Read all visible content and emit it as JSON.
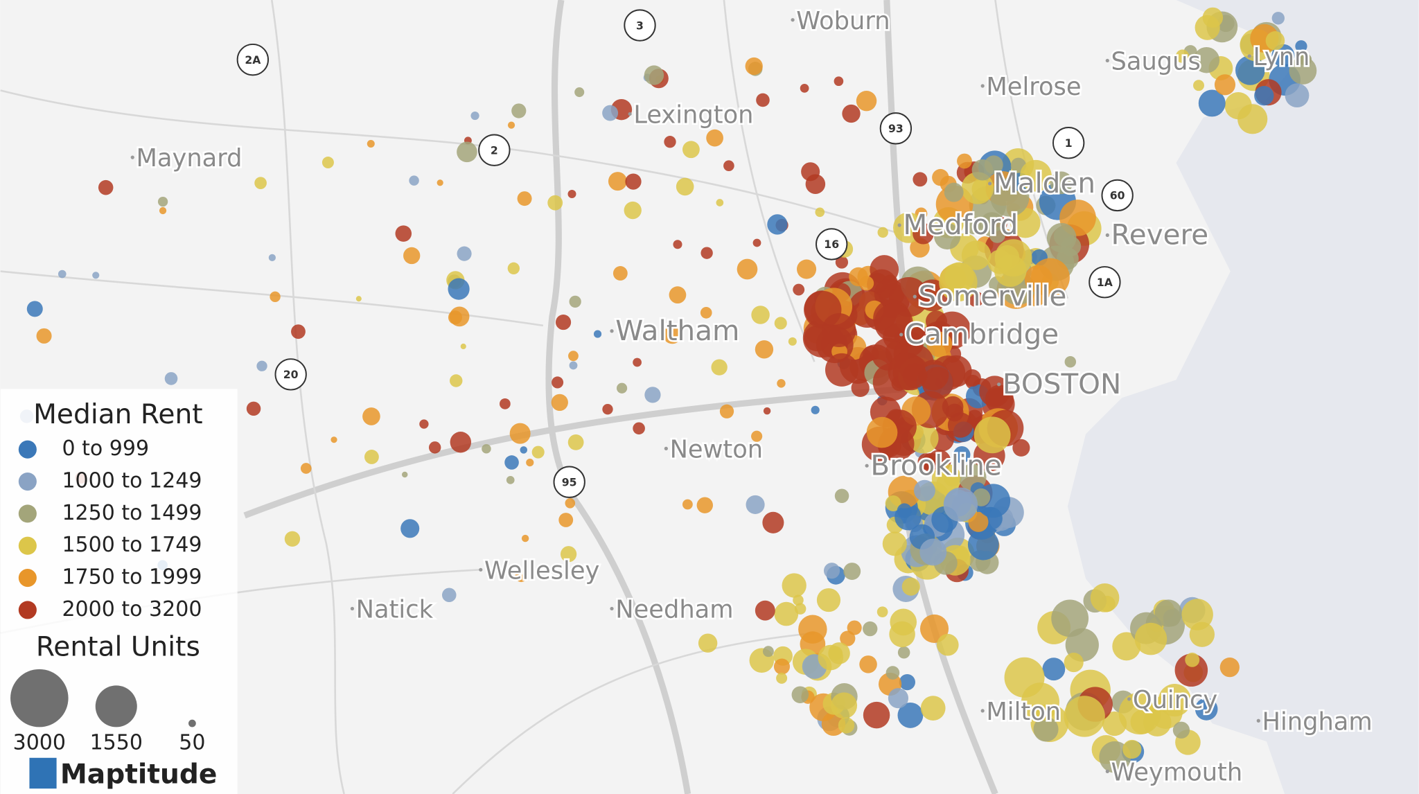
{
  "map": {
    "places": [
      "Woburn",
      "Saugus",
      "Lynn",
      "Melrose",
      "Lexington",
      "Maynard",
      "Malden",
      "Medford",
      "Revere",
      "Somerville",
      "Waltham",
      "Cambridge",
      "BOSTON",
      "Newton",
      "Brookline",
      "Wellesley",
      "Natick",
      "Needham",
      "Milton",
      "Quincy",
      "Hingham",
      "Weymouth"
    ],
    "shields": [
      "3",
      "2A",
      "2",
      "93",
      "1",
      "60",
      "16",
      "1A",
      "20",
      "95"
    ]
  },
  "legend": {
    "color_title": "Median Rent",
    "classes": [
      {
        "label": "0 to 999",
        "color": "#3b78b8"
      },
      {
        "label": "1000 to 1249",
        "color": "#8aa3c4"
      },
      {
        "label": "1250 to 1499",
        "color": "#a3a57a"
      },
      {
        "label": "1500 to 1749",
        "color": "#dcc64a"
      },
      {
        "label": "1750 to 1999",
        "color": "#e8962a"
      },
      {
        "label": "2000 to 3200",
        "color": "#b23a22"
      }
    ],
    "size_title": "Rental Units",
    "sizes": [
      3000,
      1550,
      50
    ]
  },
  "logo": "Maptitude"
}
